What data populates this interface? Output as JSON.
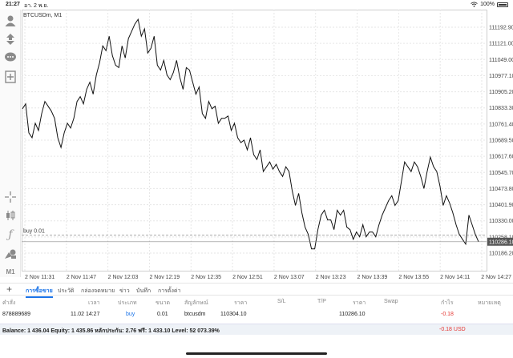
{
  "status_bar": {
    "time": "21:27",
    "date": "อา. 2 พ.ย.",
    "battery": "100%"
  },
  "chart": {
    "symbol_label": "BTCUSDm, M1",
    "buy_line_label": "buy 0.01",
    "current_price_tag": "110286.10",
    "price_ticks": [
      "111192.90",
      "111121.00",
      "111049.00",
      "110977.10",
      "110905.20",
      "110833.30",
      "110761.40",
      "110689.50",
      "110617.60",
      "110545.70",
      "110473.80",
      "110401.90",
      "110330.00",
      "110258.10",
      "110186.20"
    ],
    "time_ticks": [
      "2 Nov 11:31",
      "2 Nov 11:47",
      "2 Nov 12:03",
      "2 Nov 12:19",
      "2 Nov 12:35",
      "2 Nov 12:51",
      "2 Nov 13:07",
      "2 Nov 13:23",
      "2 Nov 13:39",
      "2 Nov 13:55",
      "2 Nov 14:11",
      "2 Nov 14:27"
    ]
  },
  "chart_data": {
    "type": "line",
    "title": "BTCUSDm, M1",
    "ylim": [
      110150,
      111230
    ],
    "grid": true,
    "buy_level": 110297,
    "series": [
      {
        "values": [
          110820,
          110840,
          110720,
          110700,
          110760,
          110730,
          110800,
          110850,
          110830,
          110810,
          110780,
          110700,
          110660,
          110720,
          110760,
          110740,
          110780,
          110850,
          110870,
          110840,
          110900,
          110930,
          110880,
          110960,
          111010,
          111080,
          111060,
          111120,
          111040,
          111000,
          110990,
          111080,
          111030,
          111110,
          111140,
          111170,
          111190,
          111120,
          111150,
          111050,
          111070,
          111120,
          111000,
          110980,
          111020,
          110960,
          110940,
          110970,
          111020,
          110950,
          110900,
          110990,
          110980,
          110930,
          110880,
          110910,
          110800,
          110780,
          110850,
          110820,
          110830,
          110760,
          110780,
          110780,
          110790,
          110730,
          110760,
          110700,
          110680,
          110690,
          110650,
          110700,
          110630,
          110610,
          110650,
          110560,
          110580,
          110600,
          110570,
          110590,
          110560,
          110540,
          110580,
          110560,
          110480,
          110420,
          110470,
          110390,
          110330,
          110300,
          110240,
          110240,
          110320,
          110380,
          110400,
          110360,
          110360,
          110320,
          110400,
          110380,
          110400,
          110330,
          110320,
          110280,
          110310,
          110290,
          110340,
          110290,
          110310,
          110310,
          110290,
          110340,
          110380,
          110410,
          110440,
          110460,
          110420,
          110440,
          110520,
          110600,
          110580,
          110560,
          110600,
          110580,
          110540,
          110490,
          110560,
          110620,
          110580,
          110560,
          110500,
          110420,
          110460,
          110430,
          110390,
          110340,
          110300,
          110280,
          110260,
          110380,
          110340,
          110300,
          110270
        ]
      }
    ]
  },
  "tabs": [
    "การซื้อขาย",
    "ประวัติ",
    "กล่องจดหมาย",
    "ข่าว",
    "บันทึก",
    "การตั้งค่า"
  ],
  "table": {
    "headers": [
      "คำสั่ง",
      "เวลา",
      "ประเภท",
      "ขนาด",
      "สัญลักษณ์",
      "ราคา",
      "S/L",
      "T/P",
      "ราคา",
      "Swap",
      "กำไร",
      "หมายเหตุ"
    ],
    "row": {
      "ticket": "878889689",
      "time": "11.02 14:27",
      "type": "buy",
      "size": "0.01",
      "symbol": "btcusdm",
      "open_price": "110304.10",
      "current_price": "110286.10",
      "profit": "-0.18"
    }
  },
  "balance": {
    "text": "Balance: 1 436.04 Equity: 1 435.86 หลักประกัน: 2.76 ฟรี: 1 433.10 Level: 52 073.39%",
    "profit": "-0.18  USD"
  },
  "colors": {
    "accent": "#1a73e8",
    "negative": "#e53935",
    "line": "#111111",
    "grid": "#e6e6e6"
  },
  "icons": [
    "person-icon",
    "trade-arrows-icon",
    "chat-icon",
    "add-document-icon",
    "crosshair-icon",
    "candles-icon",
    "function-icon",
    "objects-icon"
  ],
  "timeframe": "M1"
}
